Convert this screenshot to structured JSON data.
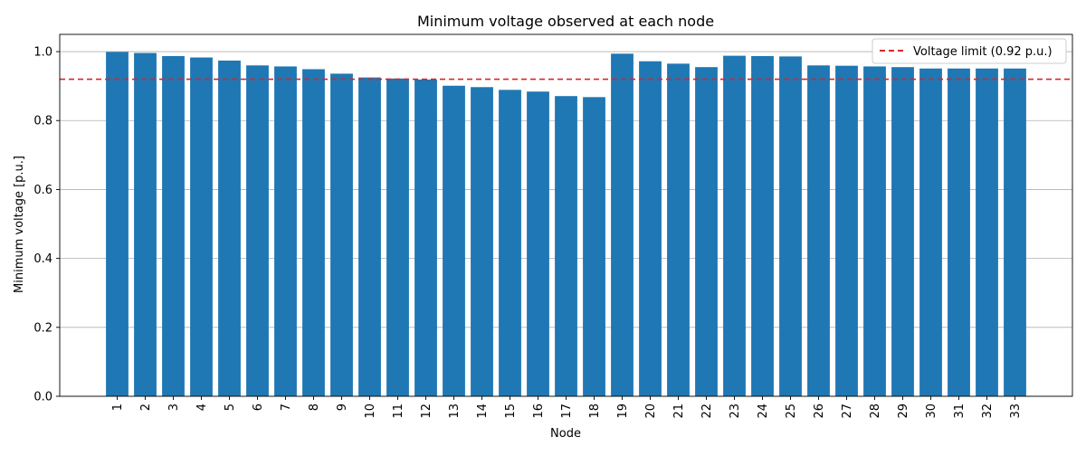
{
  "chart_data": {
    "type": "bar",
    "title": "Minimum voltage observed at each node",
    "xlabel": "Node",
    "ylabel": "Minimum voltage [p.u.]",
    "ylim": [
      0,
      1.05
    ],
    "yticks": [
      0.0,
      0.2,
      0.4,
      0.6,
      0.8,
      1.0
    ],
    "ytick_labels": [
      "0.0",
      "0.2",
      "0.4",
      "0.6",
      "0.8",
      "1.0"
    ],
    "grid": "horizontal",
    "categories": [
      "1",
      "2",
      "3",
      "4",
      "5",
      "6",
      "7",
      "8",
      "9",
      "10",
      "11",
      "12",
      "13",
      "14",
      "15",
      "16",
      "17",
      "18",
      "19",
      "20",
      "21",
      "22",
      "23",
      "24",
      "25",
      "26",
      "27",
      "28",
      "29",
      "30",
      "31",
      "32",
      "33"
    ],
    "values": [
      0.999,
      0.996,
      0.987,
      0.983,
      0.974,
      0.96,
      0.957,
      0.949,
      0.936,
      0.925,
      0.922,
      0.919,
      0.901,
      0.897,
      0.889,
      0.884,
      0.871,
      0.868,
      0.994,
      0.972,
      0.965,
      0.955,
      0.988,
      0.987,
      0.986,
      0.96,
      0.959,
      0.957,
      0.955,
      0.951,
      0.951,
      0.951,
      0.951
    ],
    "bar_color": "#1f77b4",
    "reference_line": {
      "value": 0.92,
      "label": "Voltage limit (0.92 p.u.)",
      "color": "#d62728",
      "style": "dashed"
    },
    "legend_position": "top-right"
  }
}
